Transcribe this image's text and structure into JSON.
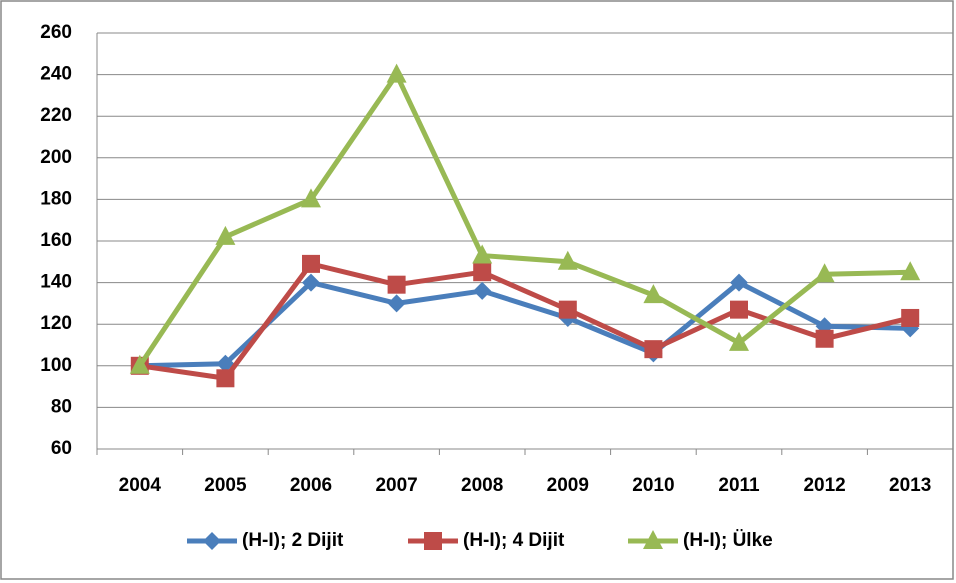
{
  "chart_data": {
    "type": "line",
    "categories": [
      "2004",
      "2005",
      "2006",
      "2007",
      "2008",
      "2009",
      "2010",
      "2011",
      "2012",
      "2013"
    ],
    "series": [
      {
        "name": "(H-I); 2 Dijit",
        "color": "#4a7ebb",
        "marker": "diamond",
        "values": [
          100,
          101,
          140,
          130,
          136,
          123,
          106,
          140,
          119,
          118
        ]
      },
      {
        "name": "(H-I); 4 Dijit",
        "color": "#be4b48",
        "marker": "square",
        "values": [
          100,
          94,
          149,
          139,
          145,
          127,
          108,
          127,
          113,
          123
        ]
      },
      {
        "name": "(H-I); Ülke",
        "color": "#98b954",
        "marker": "triangle",
        "values": [
          100,
          162,
          180,
          240,
          153,
          150,
          134,
          111,
          144,
          145
        ]
      }
    ],
    "ylim": [
      60,
      260
    ],
    "yticks": [
      60,
      80,
      100,
      120,
      140,
      160,
      180,
      200,
      220,
      240,
      260
    ],
    "grid": true,
    "legend": "bottom"
  }
}
